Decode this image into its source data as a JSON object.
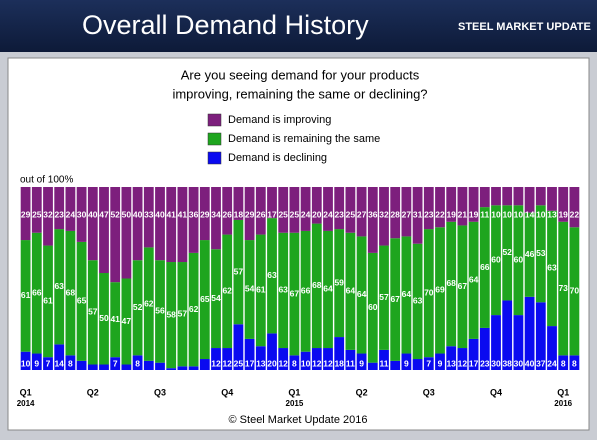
{
  "header": {
    "title": "Overall Demand History",
    "logo": "STEEL MARKET UPDATE"
  },
  "chart_data": {
    "type": "stacked_bar",
    "title": "Are you seeing demand for your products",
    "subtitle": "improving, remaining the same or declining?",
    "y_label": "out of 100%",
    "footer": "© Steel Market Update 2016",
    "ylim": [
      0,
      100
    ],
    "categories": [
      "Q1",
      null,
      null,
      null,
      null,
      null,
      "Q2",
      null,
      null,
      null,
      null,
      null,
      "Q3",
      null,
      null,
      null,
      null,
      null,
      "Q4",
      null,
      null,
      null,
      null,
      null,
      "Q1",
      null,
      null,
      null,
      null,
      null,
      "Q2",
      null,
      null,
      null,
      null,
      null,
      "Q3",
      null,
      null,
      null,
      null,
      null,
      "Q4",
      null,
      null,
      null,
      null,
      null,
      "Q1",
      null
    ],
    "category_years": [
      "2014",
      null,
      null,
      null,
      null,
      null,
      null,
      null,
      null,
      null,
      null,
      null,
      null,
      null,
      null,
      null,
      null,
      null,
      null,
      null,
      null,
      null,
      null,
      null,
      "2015",
      null,
      null,
      null,
      null,
      null,
      null,
      null,
      null,
      null,
      null,
      null,
      null,
      null,
      null,
      null,
      null,
      null,
      null,
      null,
      null,
      null,
      null,
      null,
      "2016",
      null
    ],
    "series": [
      {
        "name": "Demand is improving",
        "color": "#7d1f7d",
        "values": [
          29,
          25,
          32,
          23,
          24,
          30,
          40,
          47,
          52,
          50,
          40,
          33,
          40,
          41,
          41,
          36,
          29,
          34,
          26,
          18,
          29,
          26,
          17,
          25,
          25,
          24,
          20,
          24,
          23,
          25,
          27,
          36,
          32,
          28,
          27,
          31,
          23,
          22,
          19,
          21,
          19,
          11,
          10,
          10,
          10,
          14,
          10,
          13,
          19,
          22
        ]
      },
      {
        "name": "Demand is remaining the same",
        "color": "#1ea51e",
        "values": [
          61,
          66,
          61,
          63,
          68,
          65,
          57,
          50,
          41,
          47,
          52,
          62,
          56,
          58,
          57,
          62,
          65,
          54,
          62,
          57,
          54,
          61,
          63,
          63,
          67,
          66,
          68,
          64,
          59,
          64,
          64,
          60,
          57,
          67,
          64,
          63,
          70,
          69,
          68,
          67,
          64,
          66,
          60,
          52,
          60,
          46,
          53,
          63,
          73,
          70
        ]
      },
      {
        "name": "Demand is declining",
        "color": "#0a0af0",
        "values": [
          10,
          9,
          7,
          14,
          8,
          5,
          3,
          3,
          7,
          3,
          8,
          5,
          4,
          1,
          2,
          2,
          6,
          12,
          12,
          25,
          17,
          13,
          20,
          12,
          8,
          10,
          12,
          12,
          18,
          11,
          9,
          4,
          11,
          5,
          9,
          6,
          7,
          9,
          13,
          12,
          17,
          23,
          30,
          38,
          30,
          40,
          37,
          24,
          8,
          8
        ]
      }
    ]
  }
}
